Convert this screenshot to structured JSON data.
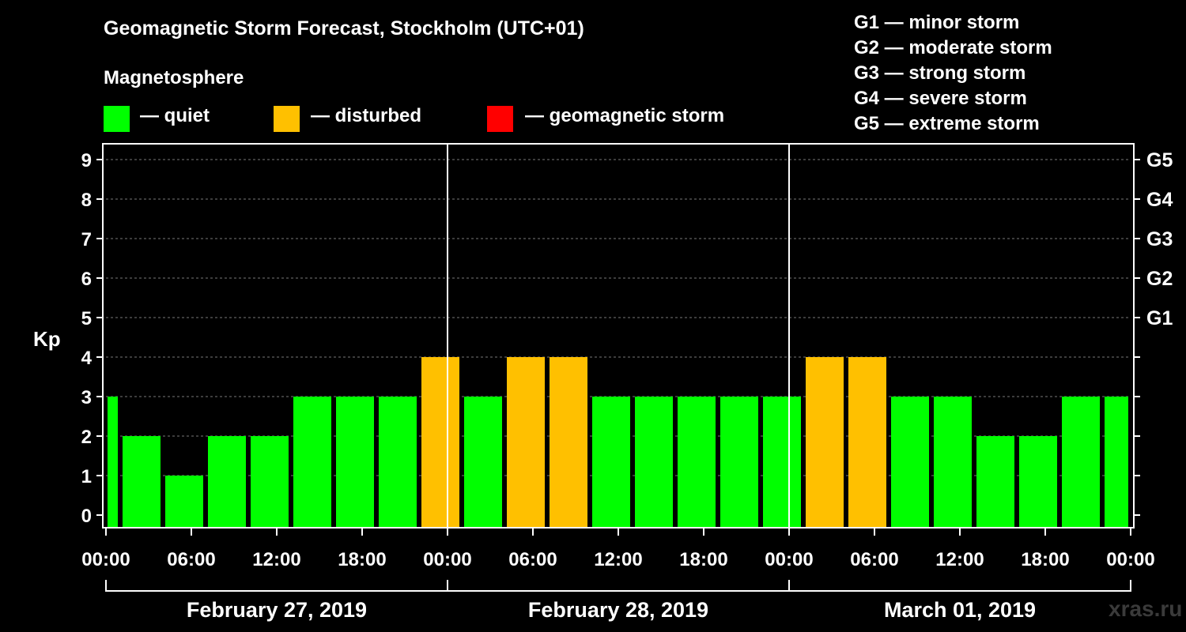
{
  "title": "Geomagnetic Storm Forecast, Stockholm (UTC+01)",
  "magnetosphere_label": "Magnetosphere",
  "legend": [
    {
      "color": "#00ff00",
      "label": "— quiet"
    },
    {
      "color": "#ffc000",
      "label": "— disturbed"
    },
    {
      "color": "#ff0000",
      "label": "— geomagnetic storm"
    }
  ],
  "storm_levels": [
    "G1 — minor storm",
    "G2 — moderate storm",
    "G3 — strong storm",
    "G4 — severe storm",
    "G5 — extreme storm"
  ],
  "brand": "xras.ru",
  "chart_data": {
    "type": "bar",
    "ylabel": "Kp",
    "ylim": [
      0,
      9
    ],
    "yticks": [
      0,
      1,
      2,
      3,
      4,
      5,
      6,
      7,
      8,
      9
    ],
    "right_ticks": [
      {
        "value": 5,
        "label": "G1"
      },
      {
        "value": 6,
        "label": "G2"
      },
      {
        "value": 7,
        "label": "G3"
      },
      {
        "value": 8,
        "label": "G4"
      },
      {
        "value": 9,
        "label": "G5"
      }
    ],
    "grid": true,
    "xtick_labels": [
      "00:00",
      "06:00",
      "12:00",
      "18:00",
      "00:00",
      "06:00",
      "12:00",
      "18:00",
      "00:00",
      "06:00",
      "12:00",
      "18:00",
      "00:00",
      "06:00",
      "12:00",
      "18:00",
      "00:00"
    ],
    "days": [
      "February 27, 2019",
      "February 28, 2019",
      "March 01, 2019"
    ],
    "colors": {
      "quiet": "#00ff00",
      "disturbed": "#ffc000",
      "storm": "#ff0000"
    },
    "bars": [
      {
        "start_hour": -2,
        "kp": 3,
        "level": "quiet"
      },
      {
        "start_hour": 1,
        "kp": 2,
        "level": "quiet"
      },
      {
        "start_hour": 4,
        "kp": 1,
        "level": "quiet"
      },
      {
        "start_hour": 7,
        "kp": 2,
        "level": "quiet"
      },
      {
        "start_hour": 10,
        "kp": 2,
        "level": "quiet"
      },
      {
        "start_hour": 13,
        "kp": 3,
        "level": "quiet"
      },
      {
        "start_hour": 16,
        "kp": 3,
        "level": "quiet"
      },
      {
        "start_hour": 19,
        "kp": 3,
        "level": "quiet"
      },
      {
        "start_hour": 22,
        "kp": 4,
        "level": "disturbed"
      },
      {
        "start_hour": 25,
        "kp": 3,
        "level": "quiet"
      },
      {
        "start_hour": 28,
        "kp": 4,
        "level": "disturbed"
      },
      {
        "start_hour": 31,
        "kp": 4,
        "level": "disturbed"
      },
      {
        "start_hour": 34,
        "kp": 3,
        "level": "quiet"
      },
      {
        "start_hour": 37,
        "kp": 3,
        "level": "quiet"
      },
      {
        "start_hour": 40,
        "kp": 3,
        "level": "quiet"
      },
      {
        "start_hour": 43,
        "kp": 3,
        "level": "quiet"
      },
      {
        "start_hour": 46,
        "kp": 3,
        "level": "quiet"
      },
      {
        "start_hour": 49,
        "kp": 4,
        "level": "disturbed"
      },
      {
        "start_hour": 52,
        "kp": 4,
        "level": "disturbed"
      },
      {
        "start_hour": 55,
        "kp": 3,
        "level": "quiet"
      },
      {
        "start_hour": 58,
        "kp": 3,
        "level": "quiet"
      },
      {
        "start_hour": 61,
        "kp": 2,
        "level": "quiet"
      },
      {
        "start_hour": 64,
        "kp": 2,
        "level": "quiet"
      },
      {
        "start_hour": 67,
        "kp": 3,
        "level": "quiet"
      },
      {
        "start_hour": 70,
        "kp": 3,
        "level": "quiet"
      }
    ],
    "bar_hours": 3,
    "x_range_hours": [
      0,
      72
    ]
  }
}
